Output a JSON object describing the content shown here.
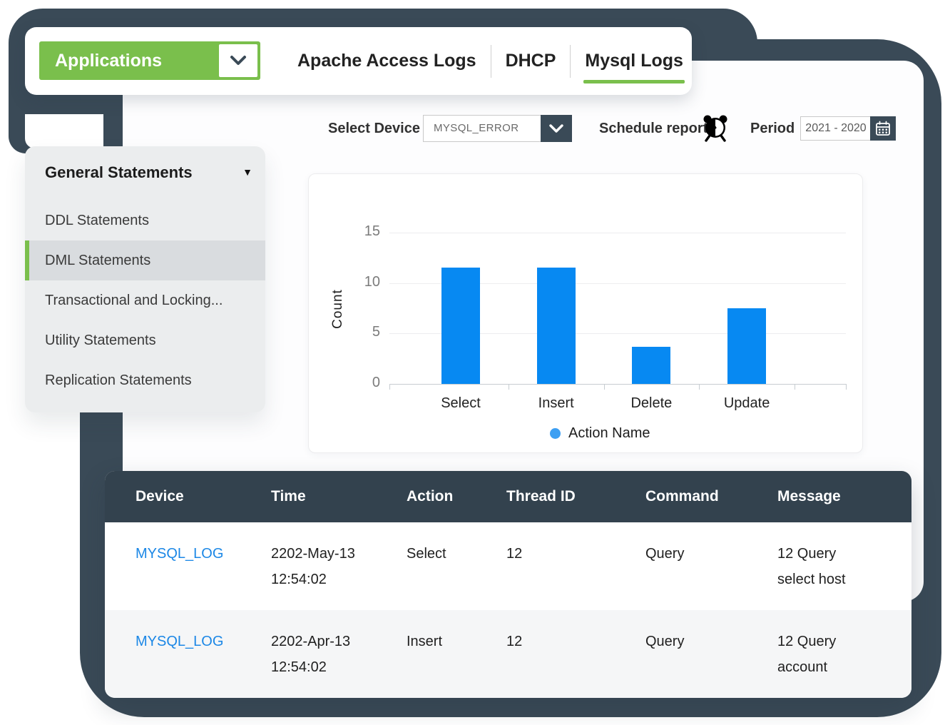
{
  "app": {
    "topbar": {
      "applications_label": "Applications",
      "tabs": [
        {
          "label": "Apache Access Logs",
          "active": false
        },
        {
          "label": "DHCP",
          "active": false
        },
        {
          "label": "Mysql Logs",
          "active": true
        }
      ]
    },
    "controls": {
      "select_device_label": "Select Device",
      "device_value": "MYSQL_ERROR",
      "schedule_report_label": "Schedule report",
      "period_label": "Period",
      "period_value": "2021 - 2020"
    },
    "sidebar": {
      "header": "General Statements",
      "items": [
        {
          "label": "DDL Statements",
          "selected": false
        },
        {
          "label": "DML Statements",
          "selected": true
        },
        {
          "label": "Transactional and Locking...",
          "selected": false
        },
        {
          "label": "Utility Statements",
          "selected": false
        },
        {
          "label": "Replication Statements",
          "selected": false
        }
      ]
    },
    "table": {
      "headers": [
        "Device",
        "Time",
        "Action",
        "Thread ID",
        "Command",
        "Message"
      ],
      "rows": [
        {
          "device": "MYSQL_LOG",
          "time_lines": [
            "2202-May-13",
            "12:54:02"
          ],
          "action": "Select",
          "thread_id": "12",
          "command": "Query",
          "message_lines": [
            "12 Query",
            "select host"
          ]
        },
        {
          "device": "MYSQL_LOG",
          "time_lines": [
            "2202-Apr-13",
            "12:54:02"
          ],
          "action": "Insert",
          "thread_id": "12",
          "command": "Query",
          "message_lines": [
            "12 Query",
            "account"
          ]
        }
      ]
    }
  },
  "chart_data": {
    "type": "bar",
    "title": "",
    "categories": [
      "Select",
      "Insert",
      "Delete",
      "Update"
    ],
    "values": [
      11.5,
      11.5,
      3.7,
      7.5
    ],
    "xlabel": "",
    "ylabel": "Count",
    "ylim": [
      0,
      15
    ],
    "yticks": [
      0,
      5,
      10,
      15
    ],
    "grid": true,
    "legend": [
      {
        "label": "Action Name",
        "color": "#3d9ff2"
      }
    ],
    "legend_position": "bottom",
    "bar_color": "#0789f2"
  },
  "colors": {
    "accent_green": "#7abf4c",
    "slate_frame": "#3a4a57",
    "table_header_slate": "#33424e",
    "bar_blue": "#0789f2",
    "link_blue": "#1b87e6"
  }
}
